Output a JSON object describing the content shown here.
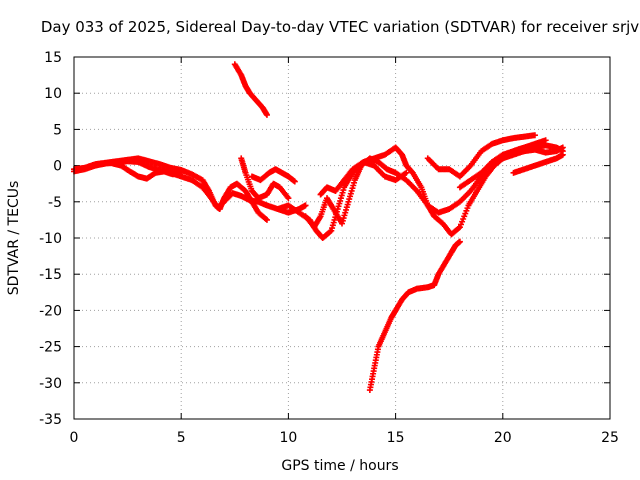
{
  "chart_data": {
    "type": "scatter",
    "title": "Day 033 of 2025, Sidereal Day-to-day VTEC variation (SDTVAR) for receiver srjv",
    "xlabel": "GPS time / hours",
    "ylabel": "SDTVAR / TECUs",
    "xlim": [
      0,
      25
    ],
    "ylim": [
      -35,
      15
    ],
    "xticks": [
      0,
      5,
      10,
      15,
      20,
      25
    ],
    "yticks": [
      15,
      10,
      5,
      0,
      -5,
      -10,
      -15,
      -20,
      -25,
      -30,
      -35
    ],
    "grid": true,
    "legend": "none",
    "marker": "plus",
    "color": "#ff0000",
    "series": [
      {
        "points": [
          [
            0,
            -0.5
          ],
          [
            0.5,
            -0.3
          ],
          [
            1,
            0.2
          ],
          [
            1.5,
            0.4
          ],
          [
            2,
            0.6
          ],
          [
            2.5,
            0.8
          ],
          [
            3,
            1.0
          ],
          [
            3.5,
            0.6
          ],
          [
            4,
            0.2
          ],
          [
            4.5,
            -0.3
          ],
          [
            5,
            -0.6
          ],
          [
            5.5,
            -1.2
          ],
          [
            6,
            -2.0
          ],
          [
            6.3,
            -3.5
          ],
          [
            6.6,
            -5.5
          ],
          [
            6.8,
            -6.0
          ],
          [
            7,
            -4.5
          ],
          [
            7.3,
            -3.0
          ],
          [
            7.6,
            -2.5
          ],
          [
            8,
            -3.5
          ],
          [
            8.3,
            -5.0
          ],
          [
            8.6,
            -6.5
          ],
          [
            9,
            -7.5
          ]
        ]
      },
      {
        "points": [
          [
            0,
            -0.8
          ],
          [
            0.5,
            -0.5
          ],
          [
            1,
            0.0
          ],
          [
            1.5,
            0.3
          ],
          [
            2,
            0.4
          ],
          [
            2.5,
            0.6
          ],
          [
            3,
            0.5
          ],
          [
            3.5,
            -0.2
          ],
          [
            4,
            -0.6
          ],
          [
            4.5,
            -1.0
          ],
          [
            5,
            -1.5
          ],
          [
            5.5,
            -2.0
          ],
          [
            6,
            -3.0
          ],
          [
            6.4,
            -4.5
          ],
          [
            6.7,
            -5.8
          ],
          [
            7,
            -5.0
          ],
          [
            7.4,
            -3.8
          ],
          [
            7.8,
            -4.2
          ],
          [
            8.2,
            -4.8
          ],
          [
            8.6,
            -5.0
          ],
          [
            9,
            -5.5
          ],
          [
            9.5,
            -6.0
          ],
          [
            10,
            -6.5
          ],
          [
            10.5,
            -6.0
          ],
          [
            10.8,
            -5.5
          ]
        ]
      },
      {
        "points": [
          [
            1.8,
            0.3
          ],
          [
            2.2,
            0.0
          ],
          [
            2.6,
            -0.8
          ],
          [
            3.0,
            -1.5
          ],
          [
            3.4,
            -1.8
          ],
          [
            3.8,
            -1.0
          ],
          [
            4.2,
            -0.8
          ],
          [
            4.6,
            -1.2
          ],
          [
            5,
            -1.0
          ]
        ]
      },
      {
        "points": [
          [
            7.5,
            14
          ],
          [
            7.8,
            12.5
          ],
          [
            8,
            11
          ],
          [
            8.2,
            10
          ],
          [
            8.5,
            9
          ],
          [
            8.8,
            8
          ],
          [
            9,
            7
          ]
        ]
      },
      {
        "points": [
          [
            7.8,
            1.0
          ],
          [
            8,
            -1.0
          ],
          [
            8.3,
            -3.5
          ],
          [
            8.6,
            -4.5
          ],
          [
            9,
            -4.0
          ],
          [
            9.3,
            -2.5
          ],
          [
            9.6,
            -3.0
          ],
          [
            10,
            -4.5
          ]
        ]
      },
      {
        "points": [
          [
            8.3,
            -1.5
          ],
          [
            8.7,
            -2.0
          ],
          [
            9.1,
            -1.0
          ],
          [
            9.4,
            -0.5
          ],
          [
            9.7,
            -1.0
          ],
          [
            10,
            -1.5
          ],
          [
            10.3,
            -2.2
          ]
        ]
      },
      {
        "points": [
          [
            9.5,
            -6.0
          ],
          [
            10,
            -5.5
          ],
          [
            10.5,
            -6.5
          ],
          [
            11,
            -7.5
          ],
          [
            11.3,
            -9.0
          ],
          [
            11.6,
            -10.0
          ],
          [
            12,
            -9.0
          ],
          [
            12.3,
            -6.0
          ],
          [
            12.6,
            -3.0
          ],
          [
            13,
            -1.0
          ],
          [
            13.5,
            0.5
          ],
          [
            14,
            1.0
          ],
          [
            14.5,
            1.5
          ],
          [
            15,
            2.5
          ],
          [
            15.3,
            1.5
          ],
          [
            15.5,
            0.0
          ],
          [
            15.8,
            -1.0
          ],
          [
            16.2,
            -3.0
          ],
          [
            16.5,
            -5.5
          ],
          [
            16.8,
            -7.0
          ],
          [
            17.2,
            -8.0
          ],
          [
            17.6,
            -9.5
          ],
          [
            18,
            -8.5
          ],
          [
            18.4,
            -5.5
          ],
          [
            18.8,
            -3.5
          ],
          [
            19.2,
            -1.5
          ],
          [
            19.6,
            0.0
          ],
          [
            20,
            1.0
          ],
          [
            20.5,
            2.0
          ],
          [
            21,
            2.5
          ],
          [
            21.5,
            3.0
          ],
          [
            22,
            3.5
          ]
        ]
      },
      {
        "points": [
          [
            10.8,
            -7.0
          ],
          [
            11.2,
            -8.5
          ],
          [
            11.5,
            -7.0
          ],
          [
            11.8,
            -4.5
          ],
          [
            12.1,
            -6.0
          ],
          [
            12.5,
            -8.0
          ],
          [
            12.8,
            -5.0
          ],
          [
            13.1,
            -2.0
          ],
          [
            13.4,
            0.0
          ],
          [
            13.8,
            1.0
          ],
          [
            14.2,
            0.5
          ],
          [
            14.6,
            -0.5
          ],
          [
            15,
            -1.0
          ],
          [
            15.5,
            -2.0
          ],
          [
            16,
            -3.5
          ],
          [
            16.5,
            -5.5
          ],
          [
            17,
            -6.5
          ],
          [
            17.5,
            -6.0
          ],
          [
            18,
            -5.0
          ],
          [
            18.5,
            -3.5
          ],
          [
            19,
            -1.5
          ],
          [
            19.5,
            0.5
          ],
          [
            20,
            1.5
          ],
          [
            20.5,
            2.0
          ],
          [
            21,
            2.5
          ]
        ]
      },
      {
        "points": [
          [
            11.5,
            -4.0
          ],
          [
            11.8,
            -3.0
          ],
          [
            12.2,
            -3.5
          ],
          [
            12.6,
            -2.0
          ],
          [
            13,
            -0.5
          ],
          [
            13.5,
            0.5
          ],
          [
            14,
            0.0
          ],
          [
            14.5,
            -1.5
          ],
          [
            15,
            -2.0
          ],
          [
            15.5,
            -1.0
          ]
        ]
      },
      {
        "points": [
          [
            16.5,
            1.0
          ],
          [
            17,
            -0.5
          ],
          [
            17.5,
            -0.5
          ],
          [
            18,
            -1.5
          ],
          [
            18.5,
            0.0
          ],
          [
            19,
            2.0
          ],
          [
            19.5,
            3.0
          ],
          [
            20,
            3.5
          ],
          [
            20.5,
            3.8
          ],
          [
            21,
            4.0
          ],
          [
            21.5,
            4.2
          ]
        ]
      },
      {
        "points": [
          [
            18,
            -3.0
          ],
          [
            18.5,
            -2.0
          ],
          [
            19,
            -1.0
          ],
          [
            19.5,
            0.5
          ],
          [
            20,
            1.0
          ],
          [
            20.5,
            1.5
          ],
          [
            21,
            2.0
          ],
          [
            21.5,
            2.5
          ],
          [
            22,
            2.8
          ],
          [
            22.5,
            2.5
          ],
          [
            22.8,
            2.0
          ]
        ]
      },
      {
        "points": [
          [
            20.5,
            -1.0
          ],
          [
            21,
            -0.5
          ],
          [
            21.5,
            0.0
          ],
          [
            22,
            0.5
          ],
          [
            22.5,
            1.0
          ],
          [
            22.8,
            1.5
          ]
        ]
      },
      {
        "points": [
          [
            21,
            2.0
          ],
          [
            21.5,
            2.2
          ],
          [
            22,
            1.8
          ],
          [
            22.5,
            2.0
          ],
          [
            22.8,
            2.5
          ]
        ]
      },
      {
        "points": [
          [
            13.8,
            -31
          ],
          [
            14,
            -28
          ],
          [
            14.2,
            -25
          ],
          [
            14.5,
            -23
          ],
          [
            14.8,
            -21
          ],
          [
            15,
            -20
          ],
          [
            15.3,
            -18.5
          ],
          [
            15.6,
            -17.5
          ],
          [
            16,
            -17
          ],
          [
            16.5,
            -16.8
          ],
          [
            16.8,
            -16.5
          ],
          [
            17,
            -15
          ],
          [
            17.3,
            -13.5
          ],
          [
            17.6,
            -12
          ],
          [
            17.8,
            -11
          ],
          [
            18,
            -10.5
          ]
        ]
      }
    ]
  }
}
